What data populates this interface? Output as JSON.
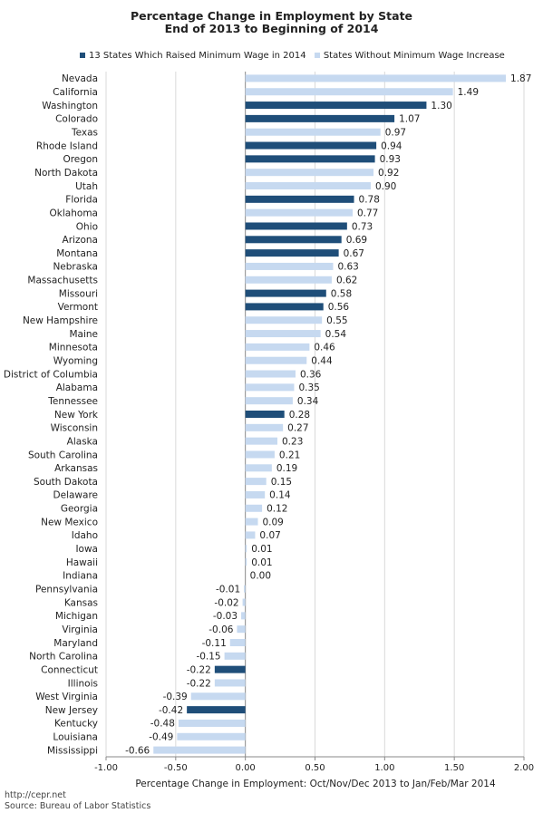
{
  "chart_data": {
    "type": "bar",
    "orientation": "horizontal",
    "title": "Percentage Change in Employment by State",
    "subtitle": "End of 2013 to Beginning of 2014",
    "xlabel": "Percentage Change in Employment: Oct/Nov/Dec 2013 to Jan/Feb/Mar 2014",
    "ylabel": "",
    "xlim": [
      -1.0,
      2.0
    ],
    "xticks": [
      "-1.00",
      "-0.50",
      "0.00",
      "0.50",
      "1.00",
      "1.50",
      "2.00"
    ],
    "xtick_values": [
      -1.0,
      -0.5,
      0.0,
      0.5,
      1.0,
      1.5,
      2.0
    ],
    "legend_position": "top",
    "legend": [
      {
        "name": "13 States Which Raised Minimum Wage in 2014",
        "color": "#1f4e79"
      },
      {
        "name": "States Without Minimum Wage Increase",
        "color": "#c6d9f0"
      }
    ],
    "categories": [
      "Nevada",
      "California",
      "Washington",
      "Colorado",
      "Texas",
      "Rhode Island",
      "Oregon",
      "North Dakota",
      "Utah",
      "Florida",
      "Oklahoma",
      "Ohio",
      "Arizona",
      "Montana",
      "Nebraska",
      "Massachusetts",
      "Missouri",
      "Vermont",
      "New Hampshire",
      "Maine",
      "Minnesota",
      "Wyoming",
      "District of Columbia",
      "Alabama",
      "Tennessee",
      "New York",
      "Wisconsin",
      "Alaska",
      "South Carolina",
      "Arkansas",
      "South Dakota",
      "Delaware",
      "Georgia",
      "New Mexico",
      "Idaho",
      "Iowa",
      "Hawaii",
      "Indiana",
      "Pennsylvania",
      "Kansas",
      "Michigan",
      "Virginia",
      "Maryland",
      "North Carolina",
      "Connecticut",
      "Illinois",
      "West Virginia",
      "New Jersey",
      "Kentucky",
      "Louisiana",
      "Mississippi"
    ],
    "values": [
      1.87,
      1.49,
      1.3,
      1.07,
      0.97,
      0.94,
      0.93,
      0.92,
      0.9,
      0.78,
      0.77,
      0.73,
      0.69,
      0.67,
      0.63,
      0.62,
      0.58,
      0.56,
      0.55,
      0.54,
      0.46,
      0.44,
      0.36,
      0.35,
      0.34,
      0.28,
      0.27,
      0.23,
      0.21,
      0.19,
      0.15,
      0.14,
      0.12,
      0.09,
      0.07,
      0.01,
      0.01,
      0.0,
      -0.01,
      -0.02,
      -0.03,
      -0.06,
      -0.11,
      -0.15,
      -0.22,
      -0.22,
      -0.39,
      -0.42,
      -0.48,
      -0.49,
      -0.66
    ],
    "value_labels": [
      "1.87",
      "1.49",
      "1.30",
      "1.07",
      "0.97",
      "0.94",
      "0.93",
      "0.92",
      "0.90",
      "0.78",
      "0.77",
      "0.73",
      "0.69",
      "0.67",
      "0.63",
      "0.62",
      "0.58",
      "0.56",
      "0.55",
      "0.54",
      "0.46",
      "0.44",
      "0.36",
      "0.35",
      "0.34",
      "0.28",
      "0.27",
      "0.23",
      "0.21",
      "0.19",
      "0.15",
      "0.14",
      "0.12",
      "0.09",
      "0.07",
      "0.01",
      "0.01",
      "0.00",
      "-0.01",
      "-0.02",
      "-0.03",
      "-0.06",
      "-0.11",
      "-0.15",
      "-0.22",
      "-0.22",
      "-0.39",
      "-0.42",
      "-0.48",
      "-0.49",
      "-0.66"
    ],
    "raised_min_wage": [
      false,
      false,
      true,
      true,
      false,
      true,
      true,
      false,
      false,
      true,
      false,
      true,
      true,
      true,
      false,
      false,
      true,
      true,
      false,
      false,
      false,
      false,
      false,
      false,
      false,
      true,
      false,
      false,
      false,
      false,
      false,
      false,
      false,
      false,
      false,
      false,
      false,
      false,
      false,
      false,
      false,
      false,
      false,
      false,
      true,
      false,
      false,
      true,
      false,
      false,
      false
    ]
  },
  "footer": {
    "url": "http://cepr.net",
    "source": "Source: Bureau of Labor Statistics"
  }
}
